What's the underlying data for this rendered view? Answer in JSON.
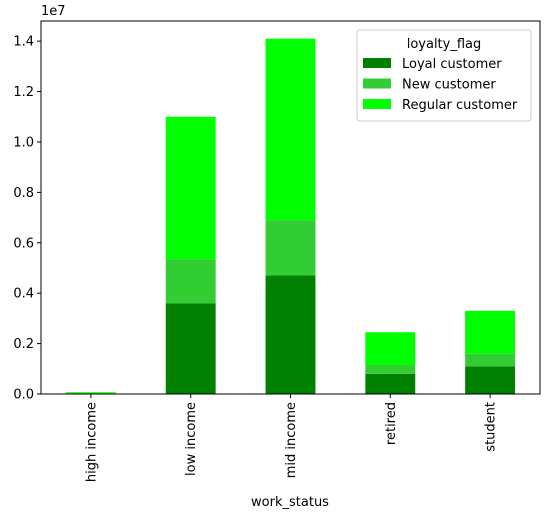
{
  "chart_data": {
    "type": "bar",
    "stacked": true,
    "categories": [
      "high income",
      "low income",
      "mid income",
      "retired",
      "student"
    ],
    "series": [
      {
        "name": "Loyal customer",
        "color": "#008000",
        "values": [
          20000,
          3600000,
          4700000,
          800000,
          1100000
        ]
      },
      {
        "name": "New customer",
        "color": "#32cd32",
        "values": [
          15000,
          1750000,
          2200000,
          350000,
          500000
        ]
      },
      {
        "name": "Regular customer",
        "color": "#00ff00",
        "values": [
          35000,
          5650000,
          7200000,
          1300000,
          1700000
        ]
      }
    ],
    "xlabel": "work_status",
    "ylabel": "",
    "ylim": [
      0,
      14800000
    ],
    "y_scale_label": "1e7",
    "y_ticks": [
      0,
      2000000,
      4000000,
      6000000,
      8000000,
      10000000,
      12000000,
      14000000
    ],
    "y_tick_labels": [
      "0.0",
      "0.2",
      "0.4",
      "0.6",
      "0.8",
      "1.0",
      "1.2",
      "1.4"
    ],
    "legend": {
      "title": "loyalty_flag",
      "position": "top-right"
    },
    "grid": false
  }
}
